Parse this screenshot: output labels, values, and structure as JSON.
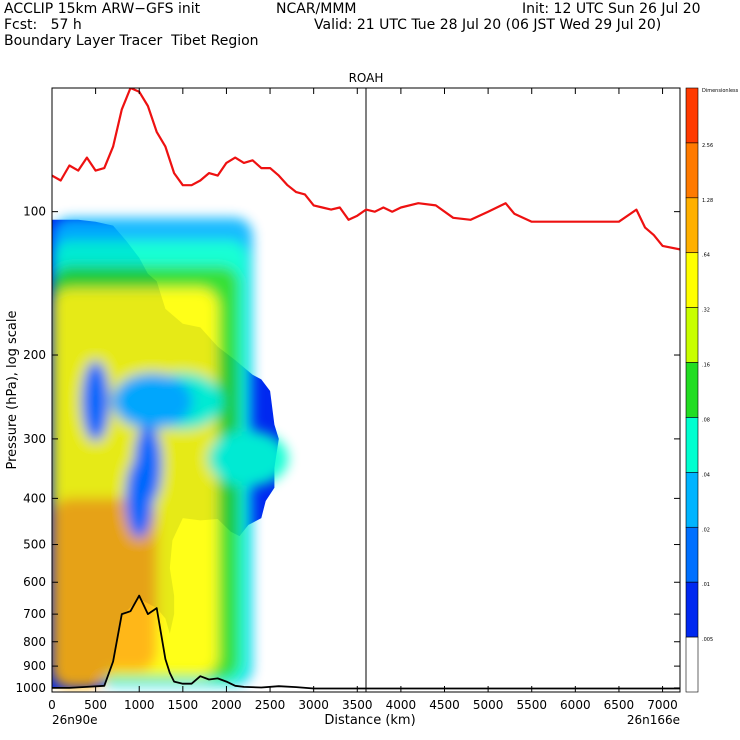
{
  "header": {
    "model": "ACCLIP 15km ARW−GFS init",
    "org": "NCAR/MMM",
    "init": "Init: 12 UTC Sun 26 Jul 20",
    "fcst": "Fcst:   57 h",
    "valid": "Valid: 21 UTC Tue 28 Jul 20 (06 JST Wed 29 Jul 20)",
    "product": "Boundary Layer Tracer  Tibet Region"
  },
  "chart_data": {
    "type": "heatmap",
    "title": "ROAH",
    "xlabel": "Distance (km)",
    "ylabel": "Pressure (hPa), log scale",
    "xlim": [
      0,
      7200
    ],
    "ylim": [
      1020,
      55
    ],
    "y_scale": "log",
    "x_ticks": [
      0,
      500,
      1000,
      1500,
      2000,
      2500,
      3000,
      3500,
      4000,
      4500,
      5000,
      5500,
      6000,
      6500,
      7000
    ],
    "y_ticks": [
      100,
      200,
      300,
      400,
      500,
      600,
      700,
      800,
      900,
      1000
    ],
    "start_label": "26n90e",
    "end_label": "26n166e",
    "marker_line_x": 3600,
    "colorbar": {
      "levels": [
        "Dimensionless",
        "2.56",
        "1.28",
        ".64",
        ".32",
        ".16",
        ".08",
        ".04",
        ".02",
        ".01",
        ".005"
      ],
      "colors": [
        "#ff3a00",
        "#ff7a00",
        "#ffb000",
        "#ffff00",
        "#c8ff00",
        "#22dd22",
        "#00ffd0",
        "#00b4ff",
        "#0070ff",
        "#0028f0",
        "#ffffff"
      ]
    },
    "tropopause_series": {
      "color": "#ee1111",
      "x": [
        0,
        100,
        200,
        300,
        400,
        500,
        600,
        700,
        800,
        900,
        1000,
        1100,
        1200,
        1300,
        1400,
        1500,
        1600,
        1700,
        1800,
        1900,
        2000,
        2100,
        2200,
        2300,
        2400,
        2500,
        2600,
        2700,
        2800,
        2900,
        3000,
        3100,
        3200,
        3300,
        3400,
        3500,
        3600,
        3700,
        3800,
        3900,
        4000,
        4200,
        4400,
        4600,
        4800,
        5000,
        5200,
        5300,
        5500,
        6000,
        6500,
        6700,
        6800,
        6900,
        7000,
        7200
      ],
      "p": [
        84,
        86,
        80,
        82,
        77,
        82,
        81,
        73,
        61,
        55,
        56,
        60,
        68,
        73,
        83,
        88,
        88,
        86,
        83,
        84,
        79,
        77,
        79,
        78,
        81,
        81,
        84,
        88,
        91,
        92,
        97,
        98,
        99,
        98,
        104,
        102,
        99,
        100,
        98,
        100,
        98,
        96,
        97,
        103,
        104,
        100,
        96,
        101,
        105,
        105,
        105,
        99,
        108,
        112,
        118,
        120
      ]
    },
    "terrain_series": {
      "color": "#000000",
      "x": [
        0,
        200,
        400,
        600,
        700,
        800,
        900,
        1000,
        1100,
        1200,
        1300,
        1350,
        1400,
        1500,
        1600,
        1700,
        1800,
        1900,
        2000,
        2100,
        2200,
        2400,
        2600,
        2800,
        3000,
        4000,
        5000,
        6000,
        7200
      ],
      "p": [
        1000,
        1000,
        995,
        990,
        880,
        700,
        690,
        640,
        700,
        680,
        870,
        930,
        970,
        980,
        980,
        945,
        960,
        955,
        970,
        990,
        995,
        998,
        992,
        996,
        1003,
        1003,
        1003,
        1003,
        1003
      ]
    },
    "tracer_contours": [
      {
        "level": ".005",
        "polygon": [
          [
            0,
            102
          ],
          [
            250,
            100
          ],
          [
            500,
            103
          ],
          [
            700,
            103
          ],
          [
            800,
            110
          ],
          [
            900,
            118
          ],
          [
            1000,
            120
          ],
          [
            1100,
            130
          ],
          [
            1200,
            137
          ],
          [
            1300,
            153
          ],
          [
            1400,
            157
          ],
          [
            1500,
            166
          ],
          [
            1600,
            165
          ],
          [
            1700,
            168
          ],
          [
            1800,
            170
          ],
          [
            1900,
            185
          ],
          [
            2000,
            190
          ],
          [
            2100,
            200
          ],
          [
            2200,
            202
          ],
          [
            2300,
            212
          ],
          [
            2400,
            215
          ],
          [
            2450,
            218
          ],
          [
            2500,
            225
          ],
          [
            2600,
            230
          ],
          [
            2650,
            270
          ],
          [
            2700,
            280
          ],
          [
            2750,
            305
          ],
          [
            2700,
            330
          ],
          [
            2650,
            345
          ],
          [
            2650,
            375
          ],
          [
            2600,
            400
          ],
          [
            2500,
            410
          ],
          [
            2500,
            455
          ],
          [
            2400,
            462
          ],
          [
            2300,
            465
          ],
          [
            2200,
            495
          ],
          [
            2150,
            505
          ],
          [
            2050,
            485
          ],
          [
            2000,
            455
          ],
          [
            1900,
            455
          ],
          [
            1800,
            465
          ],
          [
            1700,
            455
          ],
          [
            1600,
            470
          ],
          [
            1500,
            460
          ],
          [
            1400,
            480
          ],
          [
            1350,
            545
          ],
          [
            1400,
            560
          ],
          [
            1450,
            660
          ],
          [
            1500,
            700
          ],
          [
            1450,
            720
          ],
          [
            1400,
            795
          ],
          [
            1300,
            720
          ],
          [
            1200,
            680
          ],
          [
            1100,
            700
          ],
          [
            1000,
            640
          ],
          [
            900,
            690
          ],
          [
            800,
            700
          ],
          [
            700,
            880
          ],
          [
            600,
            990
          ],
          [
            0,
            1000
          ]
        ]
      },
      {
        "level": ".01",
        "polygon": [
          [
            0,
            104
          ],
          [
            300,
            104
          ],
          [
            500,
            105
          ],
          [
            700,
            107
          ],
          [
            850,
            115
          ],
          [
            1000,
            125
          ],
          [
            1100,
            135
          ],
          [
            1200,
            140
          ],
          [
            1300,
            160
          ],
          [
            1500,
            172
          ],
          [
            1700,
            175
          ],
          [
            1900,
            192
          ],
          [
            2100,
            205
          ],
          [
            2300,
            220
          ],
          [
            2400,
            225
          ],
          [
            2500,
            238
          ],
          [
            2550,
            280
          ],
          [
            2600,
            300
          ],
          [
            2550,
            345
          ],
          [
            2550,
            380
          ],
          [
            2450,
            405
          ],
          [
            2400,
            440
          ],
          [
            2250,
            455
          ],
          [
            2150,
            480
          ],
          [
            2050,
            470
          ],
          [
            1900,
            442
          ],
          [
            1700,
            445
          ],
          [
            1500,
            440
          ],
          [
            1380,
            490
          ],
          [
            1350,
            560
          ],
          [
            1400,
            640
          ],
          [
            1400,
            700
          ],
          [
            1350,
            770
          ],
          [
            1300,
            715
          ],
          [
            1200,
            680
          ],
          [
            1000,
            650
          ],
          [
            800,
            705
          ],
          [
            700,
            880
          ],
          [
            600,
            990
          ],
          [
            0,
            1000
          ]
        ]
      }
    ]
  }
}
